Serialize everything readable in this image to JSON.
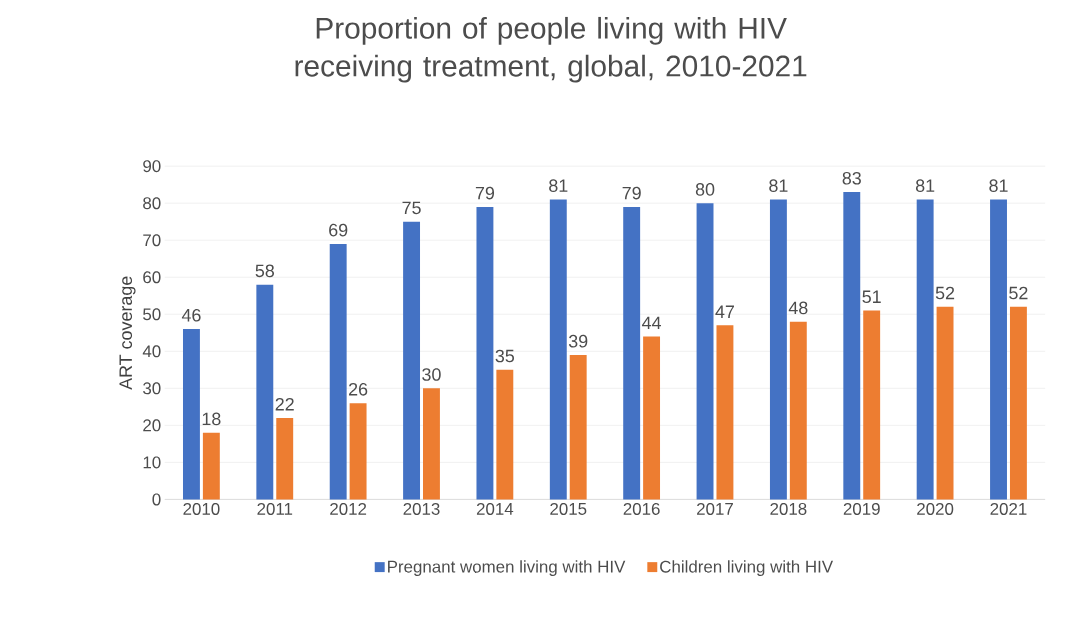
{
  "chart_data": {
    "type": "bar",
    "title": "Proportion of people living with HIV receiving treatment, global, 2010-2021",
    "ylabel": "ART coverage",
    "categories": [
      "2010",
      "2011",
      "2012",
      "2013",
      "2014",
      "2015",
      "2016",
      "2017",
      "2018",
      "2019",
      "2020",
      "2021"
    ],
    "series": [
      {
        "name": "Pregnant women living with HIV",
        "color": "#4472c4",
        "values": [
          46,
          58,
          69,
          75,
          79,
          81,
          79,
          80,
          81,
          83,
          81,
          81
        ]
      },
      {
        "name": "Children living with HIV",
        "color": "#ed7d31",
        "values": [
          18,
          22,
          26,
          30,
          35,
          39,
          44,
          47,
          48,
          51,
          52,
          52
        ]
      }
    ],
    "ylim": [
      0,
      90
    ],
    "yticks": [
      0,
      10,
      20,
      30,
      40,
      50,
      60,
      70,
      80,
      90
    ],
    "grid": "y",
    "legend": "bottom",
    "data_labels": true
  }
}
